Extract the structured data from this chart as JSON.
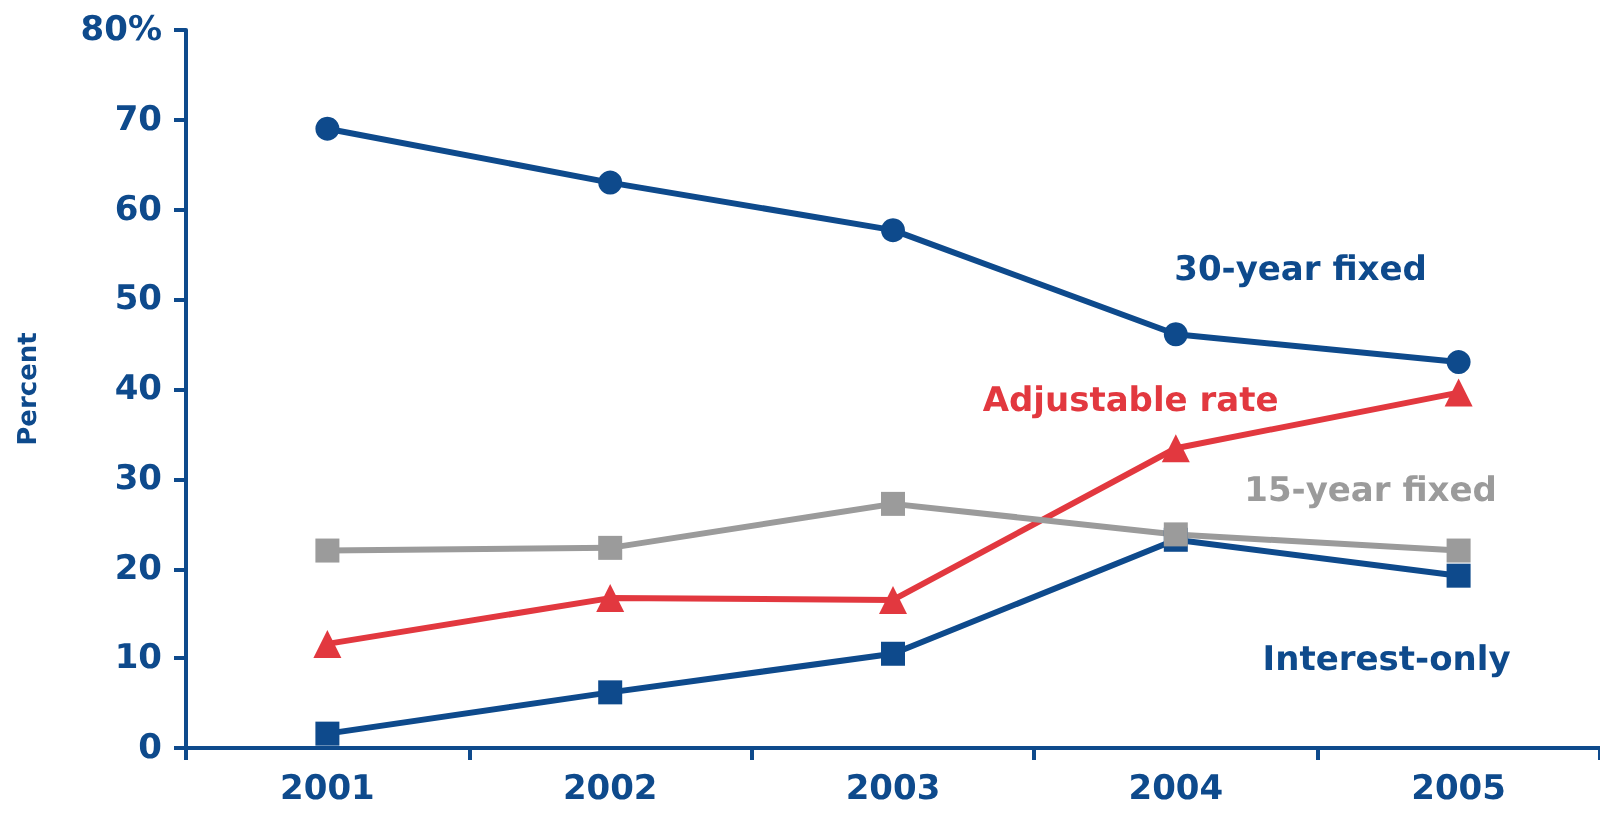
{
  "chart_data": {
    "type": "line",
    "ylabel": "Percent",
    "categories": [
      "2001",
      "2002",
      "2003",
      "2004",
      "2005"
    ],
    "ylim": [
      0,
      80
    ],
    "yticks": [
      0,
      10,
      20,
      30,
      40,
      50,
      60,
      70,
      {
        "value": 80,
        "label": "80%"
      }
    ],
    "grid": false,
    "legend": false,
    "series": [
      {
        "name": "30-year fixed",
        "color": "#0e4a8c",
        "marker": "circle",
        "values": [
          69,
          63,
          57.7,
          46.1,
          43
        ]
      },
      {
        "name": "Adjustable rate",
        "color": "#e2383f",
        "marker": "triangle",
        "values": [
          11.6,
          16.7,
          16.5,
          33.4,
          39.6
        ]
      },
      {
        "name": "Interest-only",
        "color": "#0e4a8c",
        "marker": "square",
        "values": [
          1.6,
          6.2,
          10.5,
          23.2,
          19.2
        ]
      },
      {
        "name": "15-year fixed",
        "color": "#9b9b9b",
        "marker": "square",
        "values": [
          22,
          22.3,
          27.2,
          23.8,
          22
        ]
      }
    ]
  }
}
